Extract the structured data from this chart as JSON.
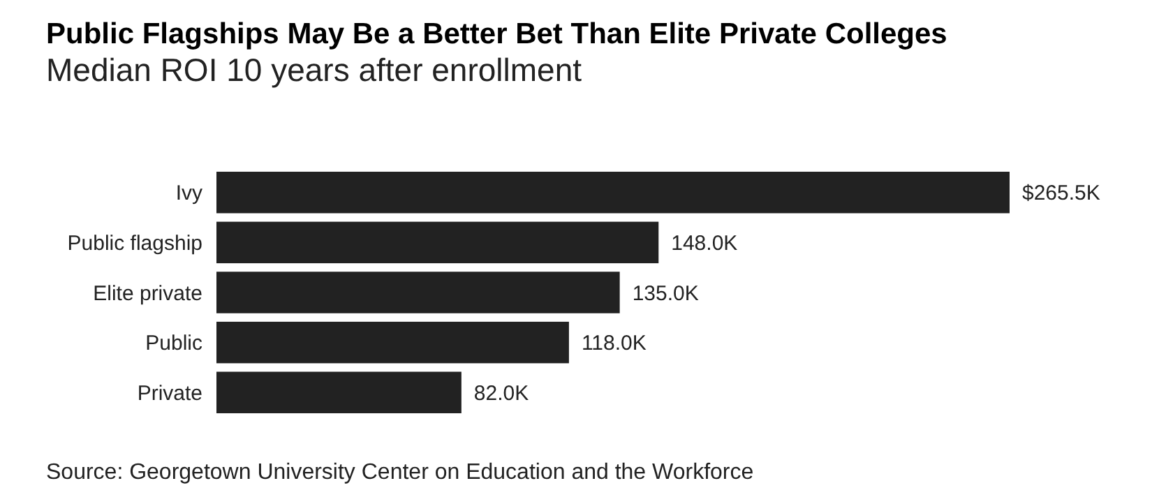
{
  "chart_data": {
    "type": "bar",
    "orientation": "horizontal",
    "title": "Public Flagships May Be a Better Bet Than Elite Private Colleges",
    "subtitle": "Median ROI 10 years after enrollment",
    "categories": [
      "Ivy",
      "Public flagship",
      "Elite private",
      "Public",
      "Private"
    ],
    "values": [
      265.5,
      148.0,
      135.0,
      118.0,
      82.0
    ],
    "value_labels": [
      "$265.5K",
      "148.0K",
      "135.0K",
      "118.0K",
      "82.0K"
    ],
    "color": "#222222",
    "annotations": [
      "Source: Georgetown University Center on Education and the Workforce"
    ]
  }
}
